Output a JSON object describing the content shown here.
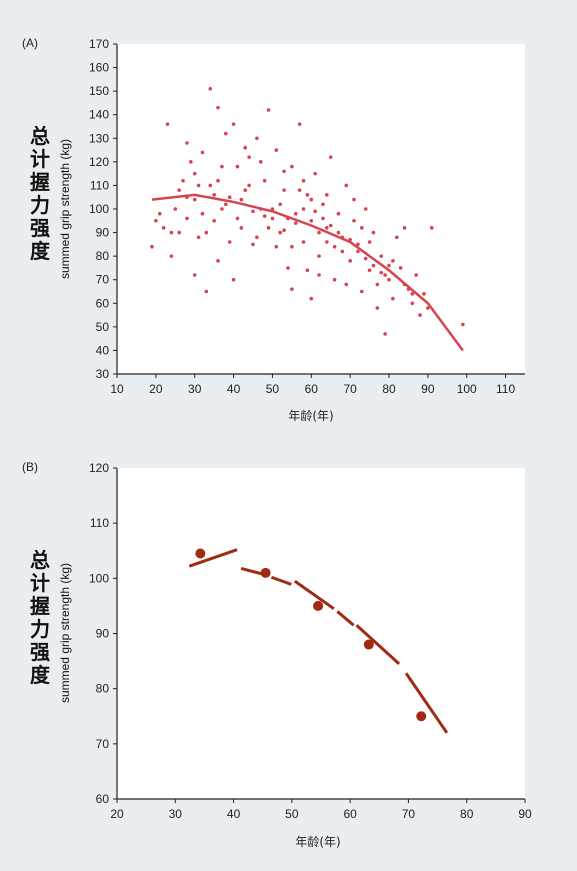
{
  "chart_data": [
    {
      "panel": "(A)",
      "type": "scatter",
      "xlabel": "年龄(年)",
      "ylabel_cn": [
        "总",
        "计",
        "握",
        "力",
        "强",
        "度"
      ],
      "ylabel": "summed grip strength (kg)",
      "xlim": [
        10,
        115
      ],
      "ylim": [
        30,
        170
      ],
      "xticks": [
        10,
        20,
        30,
        40,
        50,
        60,
        70,
        80,
        90,
        100,
        110
      ],
      "yticks": [
        30,
        40,
        50,
        60,
        70,
        80,
        90,
        100,
        110,
        120,
        130,
        140,
        150,
        160,
        170
      ],
      "color": "#d5444f",
      "points": [
        [
          19,
          84
        ],
        [
          20,
          95
        ],
        [
          21,
          98
        ],
        [
          22,
          92
        ],
        [
          23,
          136
        ],
        [
          24,
          90
        ],
        [
          24,
          80
        ],
        [
          25,
          100
        ],
        [
          26,
          108
        ],
        [
          27,
          112
        ],
        [
          28,
          105
        ],
        [
          28,
          128
        ],
        [
          29,
          120
        ],
        [
          30,
          115
        ],
        [
          30,
          72
        ],
        [
          31,
          88
        ],
        [
          32,
          98
        ],
        [
          32,
          124
        ],
        [
          33,
          65
        ],
        [
          34,
          151
        ],
        [
          34,
          110
        ],
        [
          35,
          95
        ],
        [
          36,
          143
        ],
        [
          36,
          78
        ],
        [
          37,
          100
        ],
        [
          38,
          132
        ],
        [
          39,
          105
        ],
        [
          40,
          70
        ],
        [
          40,
          136
        ],
        [
          41,
          118
        ],
        [
          42,
          92
        ],
        [
          43,
          108
        ],
        [
          44,
          122
        ],
        [
          45,
          85
        ],
        [
          46,
          130
        ],
        [
          47,
          100
        ],
        [
          48,
          112
        ],
        [
          49,
          142
        ],
        [
          50,
          96
        ],
        [
          51,
          125
        ],
        [
          52,
          90
        ],
        [
          53,
          108
        ],
        [
          54,
          75
        ],
        [
          55,
          118
        ],
        [
          56,
          98
        ],
        [
          57,
          136
        ],
        [
          58,
          86
        ],
        [
          59,
          106
        ],
        [
          60,
          95
        ],
        [
          61,
          115
        ],
        [
          62,
          80
        ],
        [
          63,
          102
        ],
        [
          64,
          92
        ],
        [
          65,
          122
        ],
        [
          66,
          70
        ],
        [
          67,
          98
        ],
        [
          68,
          88
        ],
        [
          69,
          110
        ],
        [
          70,
          78
        ],
        [
          71,
          95
        ],
        [
          72,
          85
        ],
        [
          73,
          65
        ],
        [
          74,
          100
        ],
        [
          75,
          74
        ],
        [
          76,
          90
        ],
        [
          77,
          58
        ],
        [
          78,
          80
        ],
        [
          79,
          47
        ],
        [
          80,
          70
        ],
        [
          81,
          62
        ],
        [
          82,
          88
        ],
        [
          83,
          75
        ],
        [
          84,
          92
        ],
        [
          85,
          66
        ],
        [
          86,
          60
        ],
        [
          87,
          72
        ],
        [
          88,
          55
        ],
        [
          89,
          64
        ],
        [
          90,
          58
        ],
        [
          91,
          92
        ],
        [
          58,
          100
        ],
        [
          60,
          104
        ],
        [
          56,
          94
        ],
        [
          54,
          96
        ],
        [
          62,
          90
        ],
        [
          64,
          86
        ],
        [
          52,
          102
        ],
        [
          50,
          100
        ],
        [
          66,
          84
        ],
        [
          68,
          82
        ],
        [
          30,
          104
        ],
        [
          35,
          106
        ],
        [
          38,
          102
        ],
        [
          42,
          104
        ],
        [
          45,
          99
        ],
        [
          48,
          97
        ],
        [
          44,
          110
        ],
        [
          46,
          88
        ],
        [
          53,
          91
        ],
        [
          57,
          108
        ],
        [
          61,
          99
        ],
        [
          63,
          96
        ],
        [
          65,
          93
        ],
        [
          67,
          90
        ],
        [
          70,
          87
        ],
        [
          72,
          82
        ],
        [
          74,
          79
        ],
        [
          76,
          76
        ],
        [
          78,
          73
        ],
        [
          80,
          76
        ],
        [
          33,
          90
        ],
        [
          37,
          118
        ],
        [
          41,
          96
        ],
        [
          55,
          84
        ],
        [
          59,
          74
        ],
        [
          69,
          68
        ],
        [
          71,
          104
        ],
        [
          73,
          92
        ],
        [
          75,
          86
        ],
        [
          77,
          68
        ],
        [
          26,
          90
        ],
        [
          28,
          96
        ],
        [
          31,
          110
        ],
        [
          36,
          112
        ],
        [
          39,
          86
        ],
        [
          43,
          126
        ],
        [
          47,
          120
        ],
        [
          49,
          92
        ],
        [
          51,
          84
        ],
        [
          53,
          116
        ],
        [
          99,
          51
        ],
        [
          84,
          68
        ],
        [
          86,
          64
        ],
        [
          79,
          72
        ],
        [
          81,
          78
        ],
        [
          60,
          62
        ],
        [
          55,
          66
        ],
        [
          62,
          72
        ],
        [
          64,
          106
        ],
        [
          58,
          112
        ]
      ],
      "trend": [
        [
          19,
          104
        ],
        [
          30,
          106
        ],
        [
          40,
          103
        ],
        [
          50,
          99
        ],
        [
          60,
          93
        ],
        [
          70,
          86
        ],
        [
          80,
          74
        ],
        [
          90,
          60
        ],
        [
          99,
          40
        ]
      ]
    },
    {
      "panel": "(B)",
      "type": "scatter",
      "xlabel": "年龄(年)",
      "ylabel_cn": [
        "总",
        "计",
        "握",
        "力",
        "强",
        "度"
      ],
      "ylabel": "summed grip strength (kg)",
      "xlim": [
        20,
        90
      ],
      "ylim": [
        60,
        120
      ],
      "xticks": [
        20,
        30,
        40,
        50,
        60,
        70,
        80,
        90
      ],
      "yticks": [
        60,
        70,
        80,
        90,
        100,
        110,
        120
      ],
      "color": "#a12a12",
      "points": [
        [
          34.3,
          104.5
        ],
        [
          45.5,
          101
        ],
        [
          54.5,
          95
        ],
        [
          63.2,
          88
        ],
        [
          72.2,
          75
        ]
      ],
      "trend_segments": [
        [
          [
            32.4,
            102.2
          ],
          [
            40.6,
            105.2
          ]
        ],
        [
          [
            41.3,
            101.8
          ],
          [
            46.0,
            100.5
          ]
        ],
        [
          [
            46.5,
            100.2
          ],
          [
            49.9,
            98.9
          ]
        ],
        [
          [
            50.5,
            99.5
          ],
          [
            57.2,
            94.5
          ]
        ],
        [
          [
            57.8,
            94.0
          ],
          [
            60.6,
            91.5
          ]
        ],
        [
          [
            61.1,
            91.5
          ],
          [
            68.4,
            84.5
          ]
        ],
        [
          [
            69.6,
            82.8
          ],
          [
            76.6,
            72.0
          ]
        ]
      ]
    }
  ]
}
